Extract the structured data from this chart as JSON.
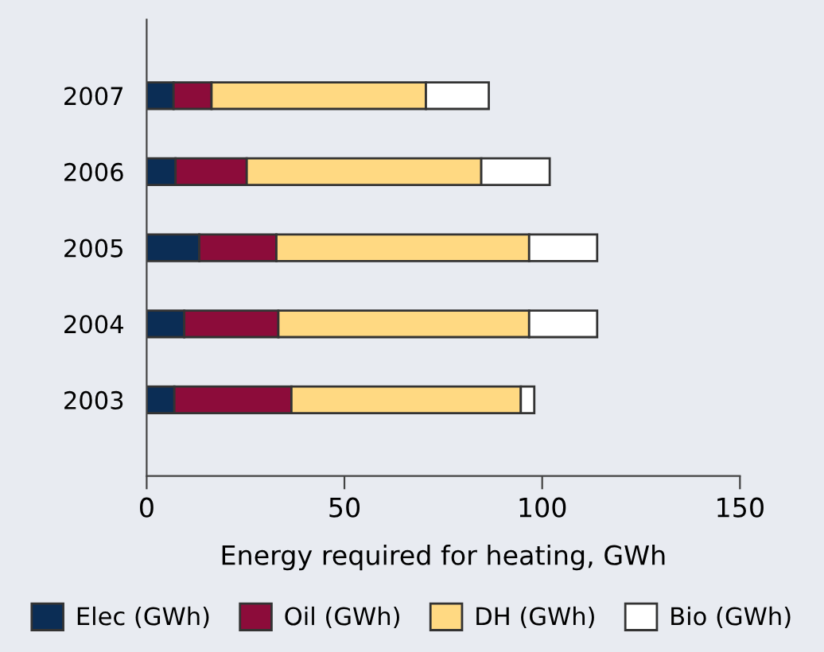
{
  "chart_data": {
    "type": "bar",
    "orientation": "horizontal",
    "stacked": true,
    "xlabel": "Energy required for heating, GWh",
    "categories": [
      "2007",
      "2006",
      "2005",
      "2004",
      "2003"
    ],
    "series": [
      {
        "name": "Elec (GWh)",
        "color": "#0b2d55",
        "values": [
          6.8,
          7.3,
          13.3,
          9.5,
          7
        ]
      },
      {
        "name": "Oil (GWh)",
        "color": "#8c0c3a",
        "values": [
          9.6,
          18,
          19.5,
          23.8,
          29.6
        ]
      },
      {
        "name": "DH (GWh)",
        "color": "#ffd982",
        "values": [
          54.2,
          59.3,
          63.9,
          63.4,
          58
        ]
      },
      {
        "name": "Bio (GWh)",
        "color": "#ffffff",
        "values": [
          15.9,
          17.3,
          17.2,
          17.2,
          3.4
        ]
      }
    ],
    "xlim": [
      0,
      150
    ],
    "xticks": [
      0,
      50,
      100,
      150
    ],
    "grid": false,
    "legend": "bottom"
  }
}
